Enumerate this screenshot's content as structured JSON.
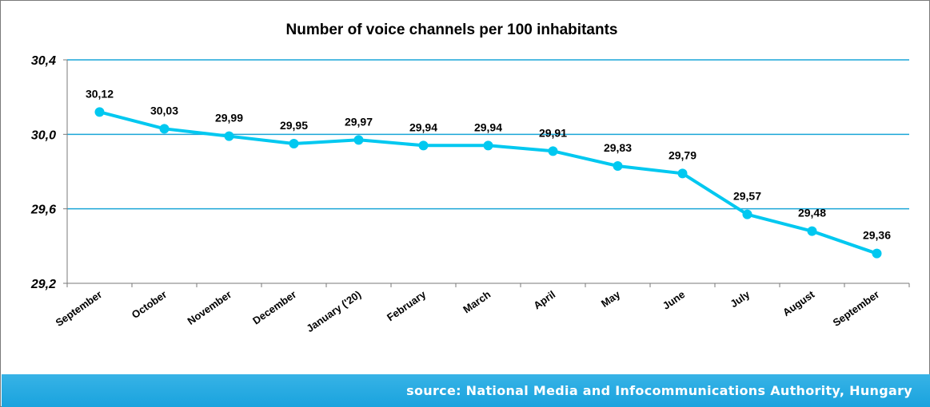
{
  "chart_data": {
    "type": "line",
    "title": "Number of voice channels per 100 inhabitants",
    "categories": [
      "September",
      "October",
      "November",
      "December",
      "January ('20)",
      "February",
      "March",
      "April",
      "May",
      "June",
      "July",
      "August",
      "September"
    ],
    "series": [
      {
        "values": [
          30.12,
          30.03,
          29.99,
          29.95,
          29.97,
          29.94,
          29.94,
          29.91,
          29.83,
          29.79,
          29.57,
          29.48,
          29.36
        ],
        "data_labels": [
          "30,12",
          "30,03",
          "29,99",
          "29,95",
          "29,97",
          "29,94",
          "29,94",
          "29,91",
          "29,83",
          "29,79",
          "29,57",
          "29,48",
          "29,36"
        ],
        "color": "#00c8f0"
      }
    ],
    "ylim": [
      29.2,
      30.4
    ],
    "yticks": [
      29.2,
      29.6,
      30.0,
      30.4
    ],
    "ytick_labels": [
      "29,2",
      "29,6",
      "30,0",
      "30,4"
    ],
    "grid": true,
    "gridline_color": "#1aa6d8",
    "xlabel": "",
    "ylabel": ""
  },
  "footer": {
    "source": "source: National Media and Infocommunications Authority, Hungary",
    "bar_color": "#23a9e1"
  }
}
